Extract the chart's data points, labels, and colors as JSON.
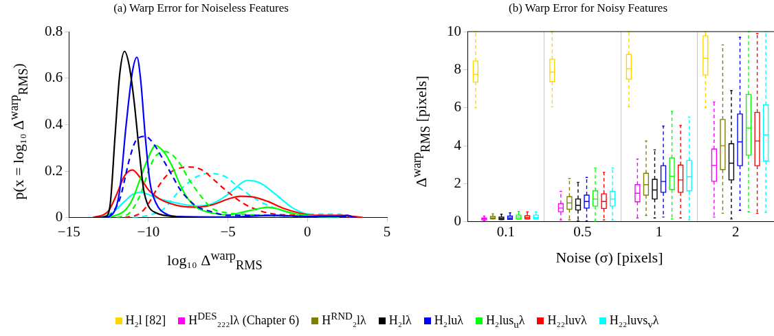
{
  "chart_data": [
    {
      "type": "line",
      "title": "(a) Warp Error for Noiseless Features",
      "xlabel": "log₁₀ Δ$^{warp}$$_{RMS}$",
      "ylabel": "p(x = log₁₀ Δ$^{warp}$$_{RMS}$)",
      "xlim": [
        -15,
        5
      ],
      "xticks": [
        {
          "value": -15,
          "label": "−15"
        },
        {
          "value": -10,
          "label": "−10"
        },
        {
          "value": -5,
          "label": "−5"
        },
        0,
        5
      ],
      "ylim": [
        0,
        0.8
      ],
      "yticks": [
        0,
        0.2,
        0.4,
        0.6,
        0.8
      ],
      "grid": false,
      "marker": "none",
      "series": [
        {
          "color": "#000000",
          "line_style": "solid",
          "x": [
            -13.5,
            -12.7,
            -12.4,
            -12.1,
            -11.8,
            -11.5,
            -11.2,
            -10.9,
            -10.6,
            -10.3,
            -10,
            -9.5,
            -9,
            -8,
            -7
          ],
          "values": [
            0,
            0.005,
            0.06,
            0.35,
            0.62,
            0.715,
            0.65,
            0.5,
            0.3,
            0.12,
            0.05,
            0.02,
            0.01,
            0.003,
            0
          ]
        },
        {
          "color": "#0000ff",
          "line_style": "solid",
          "x": [
            -12.8,
            -12.2,
            -11.8,
            -11.4,
            -11,
            -10.72,
            -10.5,
            -10.2,
            -9.9,
            -9.5,
            -9,
            -8,
            -5,
            -2,
            0,
            2,
            2.5,
            3
          ],
          "values": [
            0,
            0.02,
            0.12,
            0.4,
            0.63,
            0.69,
            0.6,
            0.35,
            0.15,
            0.06,
            0.02,
            0.005,
            0.003,
            0.01,
            0.005,
            0.005,
            0.01,
            0
          ]
        },
        {
          "color": "#0000ff",
          "line_style": "dashed",
          "x": [
            -12.5,
            -11.8,
            -11.2,
            -10.8,
            -10.2,
            -9.6,
            -9,
            -8.5,
            -8,
            -7.5,
            -7,
            -6,
            -5,
            -3,
            0,
            2,
            3
          ],
          "values": [
            0,
            0.08,
            0.25,
            0.33,
            0.35,
            0.31,
            0.24,
            0.18,
            0.12,
            0.08,
            0.05,
            0.025,
            0.01,
            0.01,
            0.005,
            0.005,
            0
          ]
        },
        {
          "color": "#00ff00",
          "line_style": "solid",
          "x": [
            -12.5,
            -11.5,
            -11,
            -10.5,
            -10,
            -9.55,
            -9,
            -8.5,
            -8,
            -7.5,
            -7,
            -6,
            -5,
            -4,
            -3,
            -2.5,
            -2,
            -1,
            0,
            1,
            2
          ],
          "values": [
            0,
            0.03,
            0.08,
            0.17,
            0.26,
            0.31,
            0.28,
            0.22,
            0.14,
            0.08,
            0.045,
            0.02,
            0.012,
            0.025,
            0.04,
            0.045,
            0.04,
            0.02,
            0.01,
            0.003,
            0
          ]
        },
        {
          "color": "#00ff00",
          "line_style": "dashed",
          "x": [
            -12,
            -11.2,
            -10.5,
            -10,
            -9.6,
            -9,
            -8.5,
            -8,
            -7.5,
            -7,
            -6.5,
            -6,
            -5,
            -4,
            -3,
            -1,
            0,
            2
          ],
          "values": [
            0,
            0.02,
            0.1,
            0.2,
            0.26,
            0.285,
            0.27,
            0.23,
            0.17,
            0.12,
            0.075,
            0.04,
            0.02,
            0.015,
            0.01,
            0.005,
            0.005,
            0
          ]
        },
        {
          "color": "#ff0000",
          "line_style": "solid",
          "x": [
            -13.5,
            -12.5,
            -12,
            -11.5,
            -11,
            -10.5,
            -10,
            -9.5,
            -9,
            -8,
            -7,
            -6,
            -5,
            -4.2,
            -3.5,
            -2.5,
            -1.5,
            -0.5,
            0.5,
            2,
            3,
            3.5
          ],
          "values": [
            0,
            0.03,
            0.1,
            0.18,
            0.205,
            0.17,
            0.12,
            0.09,
            0.07,
            0.05,
            0.045,
            0.055,
            0.08,
            0.092,
            0.09,
            0.07,
            0.04,
            0.02,
            0.01,
            0.01,
            0.005,
            0
          ]
        },
        {
          "color": "#ff0000",
          "line_style": "dashed",
          "x": [
            -11.5,
            -10.5,
            -10,
            -9.5,
            -9,
            -8.5,
            -7.5,
            -7,
            -6.5,
            -6,
            -5,
            -4,
            -3,
            -2,
            0,
            2,
            3.5
          ],
          "values": [
            0,
            0.02,
            0.06,
            0.12,
            0.17,
            0.2,
            0.218,
            0.215,
            0.2,
            0.17,
            0.11,
            0.06,
            0.03,
            0.015,
            0.01,
            0.005,
            0
          ]
        },
        {
          "color": "#00ffff",
          "line_style": "solid",
          "x": [
            -13,
            -12.3,
            -11.5,
            -11,
            -10.5,
            -10,
            -9.5,
            -9,
            -8,
            -7,
            -6,
            -5,
            -4.5,
            -3.8,
            -3,
            -2,
            -1,
            0,
            1,
            2
          ],
          "values": [
            0,
            0.02,
            0.07,
            0.1,
            0.11,
            0.1,
            0.085,
            0.075,
            0.06,
            0.05,
            0.06,
            0.1,
            0.13,
            0.16,
            0.15,
            0.1,
            0.045,
            0.015,
            0.005,
            0
          ]
        },
        {
          "color": "#00ffff",
          "line_style": "dashed",
          "x": [
            -11,
            -10,
            -9,
            -8.5,
            -8,
            -7.5,
            -7,
            -6.2,
            -5.5,
            -5,
            -4.5,
            -4,
            -3,
            -2,
            -1,
            0,
            1,
            2,
            2.3,
            3
          ],
          "values": [
            0,
            0.01,
            0.04,
            0.08,
            0.12,
            0.15,
            0.175,
            0.19,
            0.185,
            0.17,
            0.14,
            0.115,
            0.07,
            0.04,
            0.02,
            0.015,
            0.015,
            0.015,
            0.01,
            0
          ]
        }
      ]
    },
    {
      "type": "box",
      "title": "(b) Warp Error for Noisy Features",
      "xlabel": "Noise (σ) [pixels]",
      "ylabel": "Δ$^{warp}$$_{RMS}$ [pixels]",
      "categories": [
        "0.1",
        "0.5",
        "1",
        "2"
      ],
      "ylim": [
        0,
        10
      ],
      "yticks": [
        0,
        2,
        4,
        6,
        8,
        10
      ],
      "grid": "x",
      "legend": "bottom",
      "series": [
        {
          "name": "H₂l [82]",
          "color": "#ffd700",
          "boxes": [
            {
              "low": 6,
              "q1": 7.35,
              "median": 7.75,
              "q3": 8.45,
              "high": 10
            },
            {
              "low": 6.05,
              "q1": 7.37,
              "median": 7.87,
              "q3": 8.55,
              "high": 10
            },
            {
              "low": 6.05,
              "q1": 7.5,
              "median": 8.05,
              "q3": 8.8,
              "high": 10
            },
            {
              "low": 6,
              "q1": 7.72,
              "median": 8.6,
              "q3": 9.78,
              "high": 10
            }
          ]
        },
        {
          "name": "H$^{DES}$₂₂₂lλ (Chapter 6)",
          "color": "#ff00ff",
          "boxes": [
            {
              "low": 0.05,
              "q1": 0.1,
              "median": 0.15,
              "q3": 0.2,
              "high": 0.3
            },
            {
              "low": 0.1,
              "q1": 0.53,
              "median": 0.72,
              "q3": 0.95,
              "high": 1.6
            },
            {
              "low": 0.2,
              "q1": 1.05,
              "median": 1.5,
              "q3": 1.95,
              "high": 3.3
            },
            {
              "low": 0.25,
              "q1": 2.13,
              "median": 2.97,
              "q3": 3.82,
              "high": 6.3
            }
          ]
        },
        {
          "name": "H$^{RND}$₂lλ",
          "color": "#808000",
          "boxes": [
            {
              "low": 0.15,
              "q1": 0.15,
              "median": 0.2,
              "q3": 0.28,
              "high": 0.42
            },
            {
              "low": 0.1,
              "q1": 0.66,
              "median": 0.99,
              "q3": 1.32,
              "high": 2.28
            },
            {
              "low": 0.33,
              "q1": 1.4,
              "median": 1.95,
              "q3": 2.55,
              "high": 4.25
            },
            {
              "low": 0.45,
              "q1": 2.75,
              "median": 4,
              "q3": 5.38,
              "high": 9.3
            }
          ]
        },
        {
          "name": "H₂lλ",
          "color": "#000000",
          "boxes": [
            {
              "low": 0.12,
              "q1": 0.12,
              "median": 0.18,
              "q3": 0.25,
              "high": 0.4
            },
            {
              "low": 0.05,
              "q1": 0.62,
              "median": 0.87,
              "q3": 1.2,
              "high": 2.07
            },
            {
              "low": 0.2,
              "q1": 1.2,
              "median": 1.67,
              "q3": 2.23,
              "high": 3.78
            },
            {
              "low": 0.15,
              "q1": 2.2,
              "median": 3.08,
              "q3": 4.1,
              "high": 6.9
            }
          ]
        },
        {
          "name": "H₂luλ",
          "color": "#0000ff",
          "boxes": [
            {
              "low": 0.13,
              "q1": 0.13,
              "median": 0.2,
              "q3": 0.3,
              "high": 0.47
            },
            {
              "low": 0.05,
              "q1": 0.72,
              "median": 1.07,
              "q3": 1.4,
              "high": 2.33
            },
            {
              "low": 0.25,
              "q1": 1.55,
              "median": 2.12,
              "q3": 2.95,
              "high": 5.03
            },
            {
              "low": 0.6,
              "q1": 2.95,
              "median": 4.2,
              "q3": 5.67,
              "high": 9.7
            }
          ]
        },
        {
          "name": "H₂lus$_{u}$λ",
          "color": "#00ff00",
          "boxes": [
            {
              "low": 0.15,
              "q1": 0.15,
              "median": 0.25,
              "q3": 0.35,
              "high": 0.55
            },
            {
              "low": 0.03,
              "q1": 0.83,
              "median": 1.2,
              "q3": 1.63,
              "high": 2.83
            },
            {
              "low": 0.15,
              "q1": 1.7,
              "median": 2.4,
              "q3": 3.35,
              "high": 5.8
            },
            {
              "low": 0.52,
              "q1": 3.5,
              "median": 4.93,
              "q3": 6.7,
              "high": 10
            }
          ]
        },
        {
          "name": "H₂₂luvλ",
          "color": "#ff0000",
          "boxes": [
            {
              "low": 0.15,
              "q1": 0.15,
              "median": 0.22,
              "q3": 0.32,
              "high": 0.52
            },
            {
              "low": 0.1,
              "q1": 0.7,
              "median": 1.07,
              "q3": 1.47,
              "high": 2.6
            },
            {
              "low": 0.2,
              "q1": 1.55,
              "median": 2.2,
              "q3": 2.98,
              "high": 5.07
            },
            {
              "low": 0.45,
              "q1": 2.95,
              "median": 4.25,
              "q3": 5.75,
              "high": 9.9
            }
          ]
        },
        {
          "name": "H₂₂luvs$_{v}$λ",
          "color": "#00ffff",
          "boxes": [
            {
              "low": 0.15,
              "q1": 0.15,
              "median": 0.22,
              "q3": 0.35,
              "high": 0.52
            },
            {
              "low": 0.1,
              "q1": 0.83,
              "median": 1.2,
              "q3": 1.6,
              "high": 2.83
            },
            {
              "low": 0.1,
              "q1": 1.63,
              "median": 2.37,
              "q3": 3.23,
              "high": 5.5
            },
            {
              "low": 0.5,
              "q1": 3.2,
              "median": 4.57,
              "q3": 6.15,
              "high": 10
            }
          ]
        }
      ]
    }
  ]
}
